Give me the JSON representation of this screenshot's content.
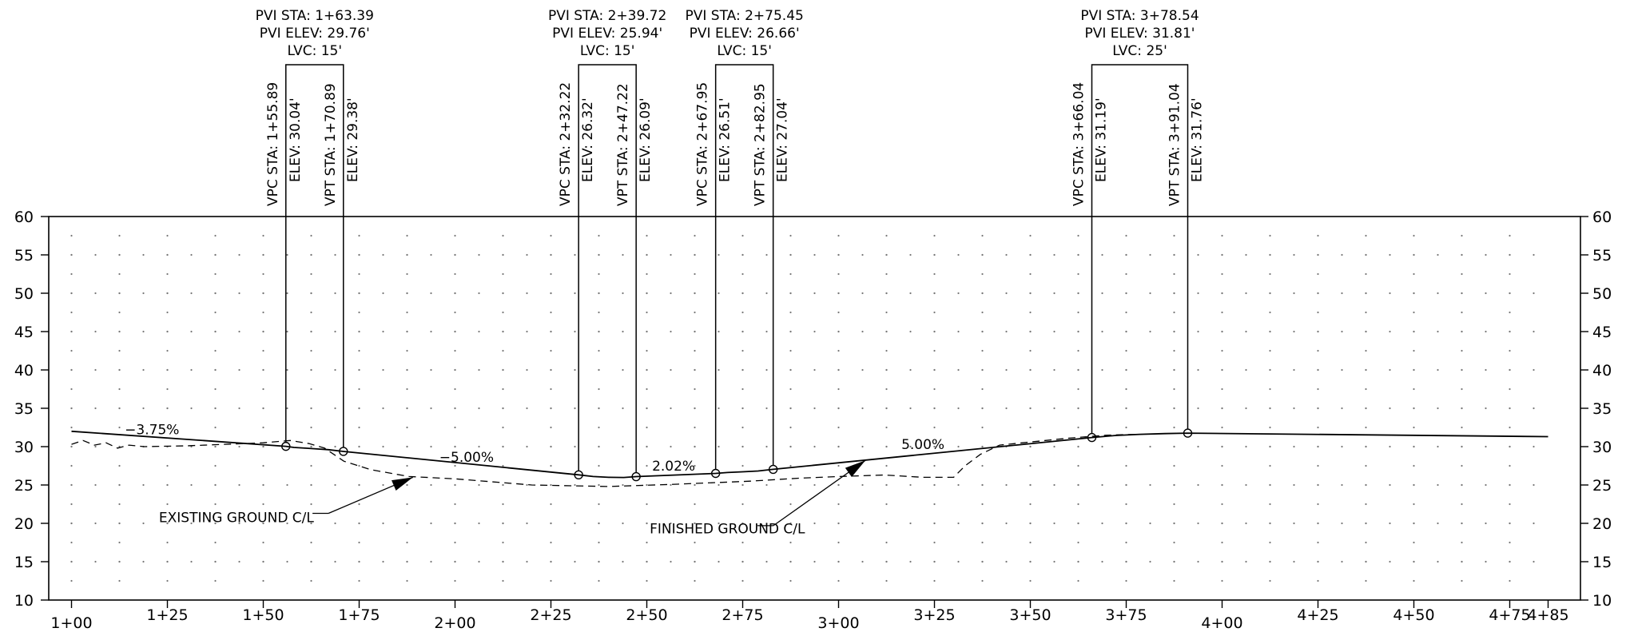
{
  "chart_data": {
    "type": "line",
    "title": "",
    "xlabel": "",
    "ylabel": "",
    "x_range_sta": [
      100,
      485
    ],
    "ylim": [
      10,
      60
    ],
    "y_ticks": [
      60,
      55,
      50,
      45,
      40,
      35,
      30,
      25,
      20,
      15,
      10
    ],
    "x_tick_labels": [
      {
        "sta": 100,
        "label": "1+00"
      },
      {
        "sta": 125,
        "label": "1+25"
      },
      {
        "sta": 150,
        "label": "1+50"
      },
      {
        "sta": 175,
        "label": "1+75"
      },
      {
        "sta": 200,
        "label": "2+00"
      },
      {
        "sta": 225,
        "label": "2+25"
      },
      {
        "sta": 250,
        "label": "2+50"
      },
      {
        "sta": 275,
        "label": "2+75"
      },
      {
        "sta": 300,
        "label": "3+00"
      },
      {
        "sta": 325,
        "label": "3+25"
      },
      {
        "sta": 350,
        "label": "3+50"
      },
      {
        "sta": 375,
        "label": "3+75"
      },
      {
        "sta": 400,
        "label": "4+00"
      },
      {
        "sta": 425,
        "label": "4+25"
      },
      {
        "sta": 450,
        "label": "4+50"
      },
      {
        "sta": 475,
        "label": "4+75"
      },
      {
        "sta": 485,
        "label": "4+85"
      }
    ],
    "grid": "dotted",
    "series": [
      {
        "name": "FINISHED GROUND C/L",
        "style": "solid",
        "points": [
          [
            100,
            32.0
          ],
          [
            155.89,
            30.04
          ],
          [
            158,
            29.9
          ],
          [
            161,
            29.8
          ],
          [
            164,
            29.7
          ],
          [
            167,
            29.6
          ],
          [
            170.89,
            29.38
          ],
          [
            232.22,
            26.32
          ],
          [
            236,
            26.1
          ],
          [
            240,
            26.0
          ],
          [
            244,
            25.98
          ],
          [
            247.22,
            26.09
          ],
          [
            267.95,
            26.51
          ],
          [
            271,
            26.62
          ],
          [
            275,
            26.72
          ],
          [
            279,
            26.82
          ],
          [
            282.95,
            27.04
          ],
          [
            366.04,
            31.19
          ],
          [
            372,
            31.45
          ],
          [
            378.5,
            31.6
          ],
          [
            385,
            31.7
          ],
          [
            391.04,
            31.76
          ],
          [
            485,
            31.3
          ]
        ]
      },
      {
        "name": "EXISTING GROUND C/L",
        "style": "dashed",
        "points": [
          [
            100,
            30.3
          ],
          [
            103,
            30.8
          ],
          [
            106,
            30.2
          ],
          [
            109,
            30.5
          ],
          [
            112,
            29.8
          ],
          [
            115,
            30.2
          ],
          [
            119,
            30.0
          ],
          [
            130,
            30.1
          ],
          [
            140,
            30.3
          ],
          [
            150,
            30.5
          ],
          [
            157,
            30.8
          ],
          [
            162,
            30.4
          ],
          [
            166,
            29.8
          ],
          [
            171,
            28.1
          ],
          [
            178,
            27.0
          ],
          [
            188,
            26.1
          ],
          [
            200,
            25.8
          ],
          [
            220,
            25.0
          ],
          [
            240,
            24.8
          ],
          [
            258,
            25.1
          ],
          [
            277,
            25.5
          ],
          [
            290,
            25.9
          ],
          [
            300,
            26.1
          ],
          [
            312,
            26.3
          ],
          [
            322,
            26.0
          ],
          [
            330,
            26.0
          ],
          [
            333,
            27.5
          ],
          [
            337,
            29.0
          ],
          [
            342,
            30.2
          ],
          [
            350,
            30.6
          ],
          [
            360,
            31.1
          ],
          [
            370,
            31.5
          ],
          [
            378,
            31.6
          ]
        ]
      }
    ],
    "vertical_curves": [
      {
        "pvi": {
          "sta": "PVI  STA: 1+63.39",
          "elev": "PVI  ELEV: 29.76'",
          "lvc": "LVC: 15'"
        },
        "vpc": {
          "station": 155.89,
          "elevation": 30.04,
          "sta": "VPC  STA: 1+55.89",
          "elev": "ELEV: 30.04'"
        },
        "vpt": {
          "station": 170.89,
          "elevation": 29.38,
          "sta": "VPT  STA: 1+70.89",
          "elev": "ELEV: 29.38'"
        }
      },
      {
        "pvi": {
          "sta": "PVI  STA: 2+39.72",
          "elev": "PVI  ELEV: 25.94'",
          "lvc": "LVC: 15'"
        },
        "vpc": {
          "station": 232.22,
          "elevation": 26.32,
          "sta": "VPC  STA: 2+32.22",
          "elev": "ELEV: 26.32'"
        },
        "vpt": {
          "station": 247.22,
          "elevation": 26.09,
          "sta": "VPT  STA: 2+47.22",
          "elev": "ELEV: 26.09'"
        }
      },
      {
        "pvi": {
          "sta": "PVI  STA: 2+75.45",
          "elev": "PVI  ELEV: 26.66'",
          "lvc": "LVC: 15'"
        },
        "vpc": {
          "station": 267.95,
          "elevation": 26.51,
          "sta": "VPC  STA: 2+67.95",
          "elev": "ELEV: 26.51'"
        },
        "vpt": {
          "station": 282.95,
          "elevation": 27.04,
          "sta": "VPT  STA: 2+82.95",
          "elev": "ELEV: 27.04'"
        }
      },
      {
        "pvi": {
          "sta": "PVI  STA: 3+78.54",
          "elev": "PVI  ELEV: 31.81'",
          "lvc": "LVC: 25'"
        },
        "vpc": {
          "station": 366.04,
          "elevation": 31.19,
          "sta": "VPC  STA: 3+66.04",
          "elev": "ELEV: 31.19'"
        },
        "vpt": {
          "station": 391.04,
          "elevation": 31.76,
          "sta": "VPT  STA: 3+91.04",
          "elev": "ELEV: 31.76'"
        }
      }
    ],
    "grade_labels": [
      {
        "text": "−3.75%",
        "station": 121,
        "elevation": 31.6
      },
      {
        "text": "−5.00%",
        "station": 203,
        "elevation": 28.0
      },
      {
        "text": "2.02%",
        "station": 257,
        "elevation": 26.9
      },
      {
        "text": "5.00%",
        "station": 322,
        "elevation": 29.7
      }
    ],
    "callouts": [
      {
        "text": "EXISTING GROUND C/L",
        "text_station": 143,
        "text_elevation": 20.8,
        "arrow_from": [
          167,
          21.3
        ],
        "arrow_to": [
          189,
          26.0
        ]
      },
      {
        "text": "FINISHED GROUND C/L",
        "text_station": 271,
        "text_elevation": 19.3,
        "arrow_from": [
          283,
          19.7
        ],
        "arrow_to": [
          307,
          28.2
        ]
      }
    ]
  }
}
